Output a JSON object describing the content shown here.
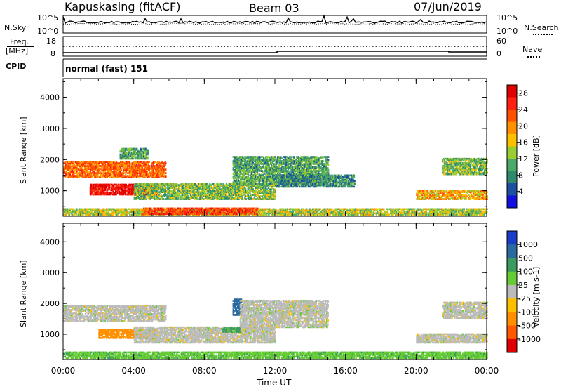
{
  "header": {
    "station": "Kapuskasing (fitACF)",
    "beam": "Beam 03",
    "date": "07/Jun/2019"
  },
  "status_panels": {
    "nsky_label": "N.Sky",
    "nsky_ticks": [
      "10^5",
      "10^0"
    ],
    "nsearch_label": "N.Search",
    "nsearch_ticks": [
      "10^5",
      "10^0"
    ],
    "freq_label_1": "Freq.",
    "freq_label_2": "[MHz]",
    "freq_ticks": [
      "18",
      "8"
    ],
    "nave_label": "Nave",
    "nave_ticks": [
      "60",
      "0"
    ],
    "cpid_label": "CPID",
    "cpid_text": "normal (fast) 151"
  },
  "chart_data": [
    {
      "type": "heatmap",
      "title": "",
      "ylabel": "Slant Range [km]",
      "xlabel": "",
      "ylim": [
        180,
        4600
      ],
      "xlim_hours": [
        0,
        24
      ],
      "yticks": [
        "1000",
        "2000",
        "3000",
        "4000"
      ],
      "xticks": [
        "00:00",
        "04:00",
        "08:00",
        "12:00",
        "16:00",
        "20:00",
        "00:00"
      ],
      "colorbar": {
        "label": "Power [dB]",
        "ticks": [
          "4",
          "8",
          "12",
          "16",
          "20",
          "24",
          "28"
        ],
        "colors": [
          "#1010e0",
          "#1e4fa0",
          "#2e8a6a",
          "#4aa868",
          "#9acd32",
          "#ffc000",
          "#ff9000",
          "#ff5000",
          "#ff2010",
          "#e00000"
        ]
      },
      "echo_regions": [
        {
          "t0": 0.0,
          "t1": 5.8,
          "r0": 1400,
          "r1": 1900,
          "value": 22
        },
        {
          "t0": 1.5,
          "t1": 5.3,
          "r0": 850,
          "r1": 1200,
          "value": 28
        },
        {
          "t0": 3.2,
          "t1": 4.8,
          "r0": 2000,
          "r1": 2350,
          "value": 10
        },
        {
          "t0": 4.0,
          "t1": 12.0,
          "r0": 700,
          "r1": 1200,
          "value": 12
        },
        {
          "t0": 9.6,
          "t1": 15.0,
          "r0": 1200,
          "r1": 2100,
          "value": 10
        },
        {
          "t0": 12.0,
          "t1": 16.5,
          "r0": 1100,
          "r1": 1500,
          "value": 8
        },
        {
          "t0": 20.0,
          "t1": 24.0,
          "r0": 700,
          "r1": 1000,
          "value": 18
        },
        {
          "t0": 21.5,
          "t1": 24.0,
          "r0": 1500,
          "r1": 2000,
          "value": 12
        },
        {
          "t0": 0.0,
          "t1": 24.0,
          "r0": 200,
          "r1": 400,
          "value": 14
        },
        {
          "t0": 4.5,
          "t1": 11.0,
          "r0": 220,
          "r1": 420,
          "value": 24
        }
      ]
    },
    {
      "type": "heatmap",
      "title": "",
      "ylabel": "Slant Range [km]",
      "xlabel": "Time UT",
      "ylim": [
        180,
        4600
      ],
      "xlim_hours": [
        0,
        24
      ],
      "yticks": [
        "1000",
        "2000",
        "3000",
        "4000"
      ],
      "xticks": [
        "00:00",
        "04:00",
        "08:00",
        "12:00",
        "16:00",
        "20:00",
        "00:00"
      ],
      "colorbar": {
        "label": "Velocity [m s-1]",
        "ticks": [
          "1000",
          "500",
          "100",
          "25",
          "-25",
          "-100",
          "-500",
          "-1000"
        ],
        "colors": [
          "#1a3cc8",
          "#2a6aa0",
          "#3a9a60",
          "#66cc33",
          "#bbbbbb",
          "#ffc000",
          "#ff9000",
          "#ff5a00",
          "#e00000"
        ]
      },
      "echo_regions": [
        {
          "t0": 0.0,
          "t1": 5.8,
          "r0": 1400,
          "r1": 1900,
          "value": 0
        },
        {
          "t0": 2.0,
          "t1": 5.3,
          "r0": 850,
          "r1": 1150,
          "value": -150
        },
        {
          "t0": 4.0,
          "t1": 12.0,
          "r0": 700,
          "r1": 1200,
          "value": 0
        },
        {
          "t0": 9.0,
          "t1": 10.0,
          "r0": 1050,
          "r1": 1200,
          "value": 120
        },
        {
          "t0": 9.6,
          "t1": 10.1,
          "r0": 1600,
          "r1": 2100,
          "value": 600
        },
        {
          "t0": 10.0,
          "t1": 15.0,
          "r0": 1200,
          "r1": 2100,
          "value": 0
        },
        {
          "t0": 20.0,
          "t1": 24.0,
          "r0": 700,
          "r1": 1000,
          "value": 0
        },
        {
          "t0": 21.5,
          "t1": 24.0,
          "r0": 1500,
          "r1": 2000,
          "value": 0
        },
        {
          "t0": 0.0,
          "t1": 24.0,
          "r0": 200,
          "r1": 400,
          "value": 80
        }
      ]
    }
  ]
}
